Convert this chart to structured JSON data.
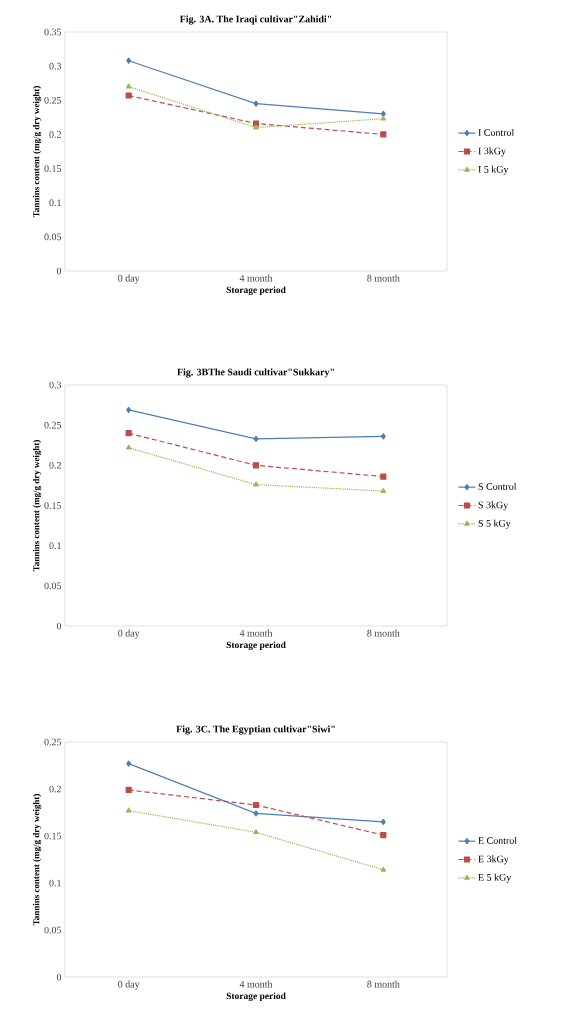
{
  "chart_data": [
    {
      "type": "line",
      "title": "Fig. 3A. The Iraqi cultivar\"Zahidi\"",
      "xlabel": "Storage period",
      "ylabel": "Tannins content (mg/g dry weight)",
      "categories": [
        "0 day",
        "4 month",
        "8 month"
      ],
      "ylim": [
        0,
        0.35
      ],
      "yticks": [
        0,
        0.05,
        0.1,
        0.15,
        0.2,
        0.25,
        0.3,
        0.35
      ],
      "legend": "right",
      "series": [
        {
          "name": "I Control",
          "color": "#4a7ebb",
          "marker": "diamond",
          "line_style": "solid",
          "values": [
            0.308,
            0.245,
            0.23
          ]
        },
        {
          "name": "I 3kGy",
          "color": "#be4b48",
          "marker": "square",
          "line_style": "dashed",
          "values": [
            0.257,
            0.216,
            0.2
          ]
        },
        {
          "name": "I 5 kGy",
          "color": "#98b954",
          "marker": "triangle",
          "line_style": "dotted",
          "values": [
            0.27,
            0.21,
            0.223
          ]
        }
      ]
    },
    {
      "type": "line",
      "title": "Fig. 3BThe Saudi cultivar\"Sukkary\"",
      "xlabel": "Storage period",
      "ylabel": "Tannins content (mg/g dry weight)",
      "categories": [
        "0 day",
        "4 month",
        "8 month"
      ],
      "ylim": [
        0,
        0.3
      ],
      "yticks": [
        0,
        0.05,
        0.1,
        0.15,
        0.2,
        0.25,
        0.3
      ],
      "legend": "right",
      "series": [
        {
          "name": "S Control",
          "color": "#4a7ebb",
          "marker": "diamond",
          "line_style": "solid",
          "values": [
            0.269,
            0.233,
            0.236
          ]
        },
        {
          "name": "S 3kGy",
          "color": "#be4b48",
          "marker": "square",
          "line_style": "dashed",
          "values": [
            0.24,
            0.2,
            0.186
          ]
        },
        {
          "name": "S 5 kGy",
          "color": "#98b954",
          "marker": "triangle",
          "line_style": "dotted",
          "values": [
            0.222,
            0.176,
            0.168
          ]
        }
      ]
    },
    {
      "type": "line",
      "title": "Fig. 3C. The Egyptian cultivar\"Siwi\"",
      "xlabel": "Storage period",
      "ylabel": "Tannins content (mg/g dry weight)",
      "categories": [
        "0 day",
        "4 month",
        "8 month"
      ],
      "ylim": [
        0,
        0.25
      ],
      "yticks": [
        0,
        0.05,
        0.1,
        0.15,
        0.2,
        0.25
      ],
      "legend": "right",
      "series": [
        {
          "name": "E Control",
          "color": "#4a7ebb",
          "marker": "diamond",
          "line_style": "solid",
          "values": [
            0.227,
            0.174,
            0.165
          ]
        },
        {
          "name": "E 3kGy",
          "color": "#be4b48",
          "marker": "square",
          "line_style": "dashed",
          "values": [
            0.199,
            0.183,
            0.151
          ]
        },
        {
          "name": "E 5 kGy",
          "color": "#98b954",
          "marker": "triangle",
          "line_style": "dotted",
          "values": [
            0.177,
            0.154,
            0.114
          ]
        }
      ]
    }
  ]
}
